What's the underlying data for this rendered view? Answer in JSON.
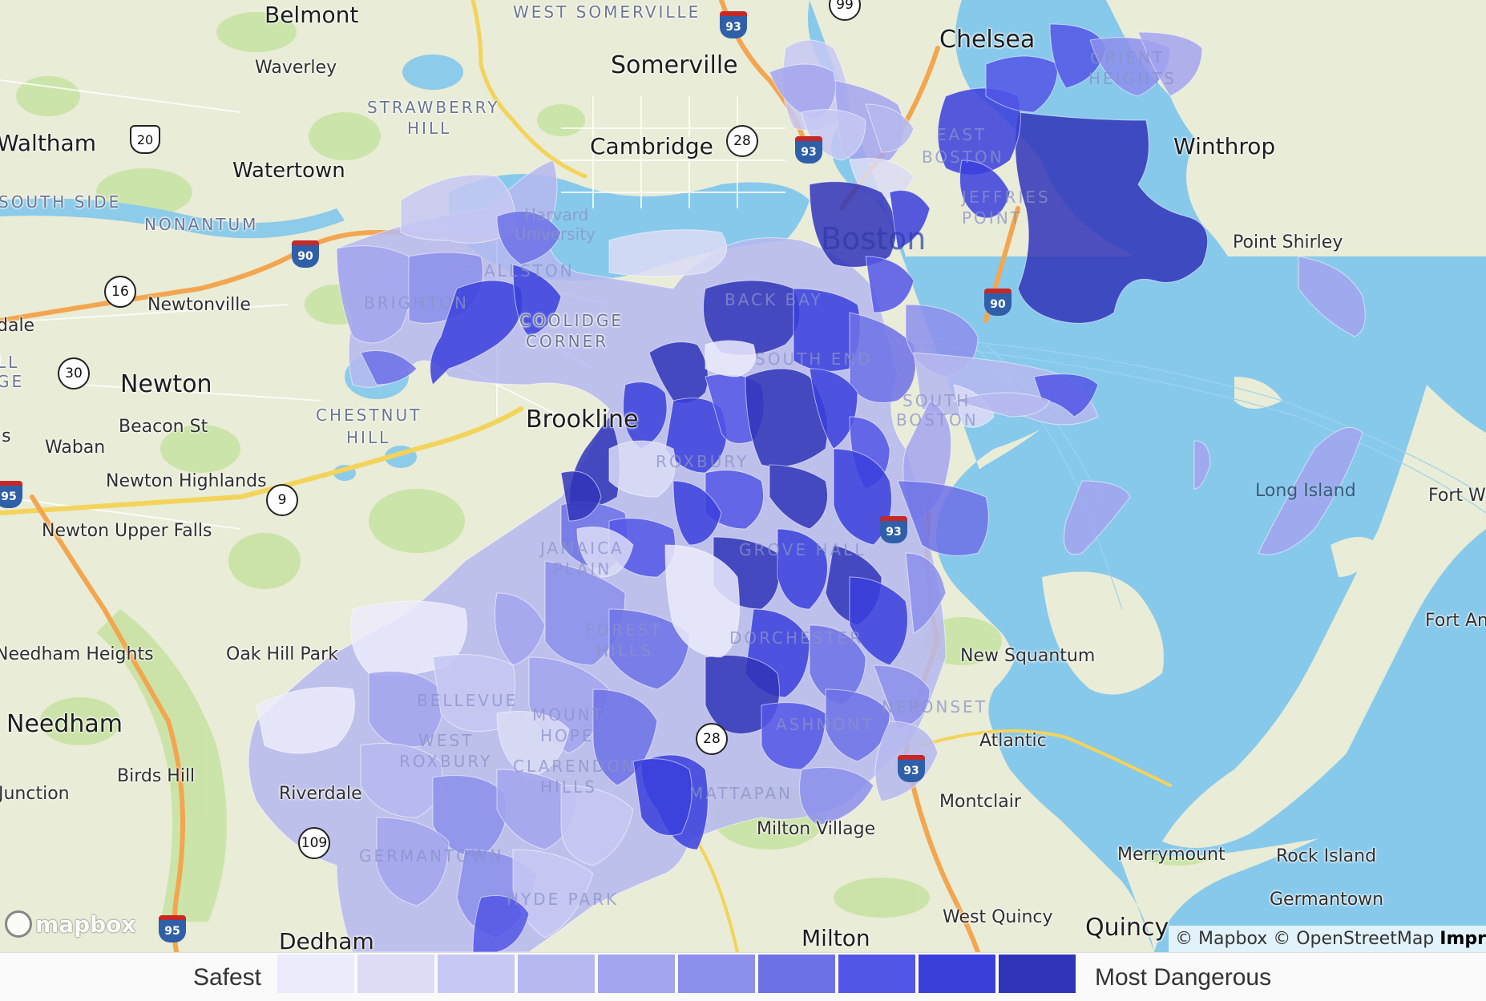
{
  "legend": {
    "low_label": "Safest",
    "high_label": "Most Dangerous",
    "scale_colors": [
      "#ecebfb",
      "#dcdcf6",
      "#c7c8f3",
      "#b6b8f0",
      "#a3a5ee",
      "#8c8fec",
      "#6d71e6",
      "#5256e6",
      "#3a3fdc",
      "#3034b8"
    ]
  },
  "map": {
    "cities": [
      "Belmont",
      "Somerville",
      "Chelsea",
      "Cambridge",
      "Winthrop",
      "Waltham",
      "Watertown",
      "Newton",
      "Brookline",
      "Needham",
      "Dedham",
      "Milton",
      "Quincy"
    ],
    "towns": [
      "Waverley",
      "Newtonville",
      "Beacon St",
      "Waban",
      "Newton Highlands",
      "Newton Upper Falls",
      "Needham Heights",
      "Oak Hill Park",
      "Birds Hill",
      "Riverdale",
      "Point Shirley",
      "Fort Wa",
      "Fort And",
      "New Squantum",
      "Atlantic",
      "Montclair",
      "Milton Village",
      "Merrymount",
      "Rock Island",
      "Germantown",
      "West Quincy",
      "Junction",
      "dale",
      "ls"
    ],
    "neighborhoods": [
      "WEST SOMERVILLE",
      "STRAWBERRY",
      "HILL",
      "SOUTH SIDE",
      "NONANTUM",
      "CHESTNUT",
      "HILL",
      "ALLSTON",
      "BRIGHTON",
      "COOLIDGE",
      "CORNER",
      "BACK BAY",
      "SOUTH END",
      "SOUTH",
      "BOSTON",
      "EAST",
      "BOSTON",
      "JEFFRIES",
      "POINT",
      "ORIENT",
      "HEIGHTS",
      "ROXBURY",
      "JAMAICA",
      "PLAIN",
      "GROVE HALL",
      "FOREST",
      "HILLS",
      "DORCHESTER",
      "NEPONSET",
      "ASHMONT",
      "BELLEVUE",
      "MOUNT",
      "HOPE",
      "WEST",
      "ROXBURY",
      "CLARENDON",
      "HILLS",
      "MATTAPAN",
      "GERMANTOWN",
      "HYDE PARK",
      "Harvard",
      "University",
      "LL",
      "GE"
    ],
    "overlay_city": "Boston",
    "water": [
      "Long Island"
    ],
    "road_shields": [
      "93",
      "99",
      "20",
      "28",
      "90",
      "16",
      "30",
      "9",
      "95",
      "93",
      "90",
      "28",
      "93",
      "109",
      "95",
      "93"
    ],
    "logo": "mapbox",
    "attribution": "© Mapbox © OpenStreetMap",
    "attribution_bold": "Impr"
  }
}
